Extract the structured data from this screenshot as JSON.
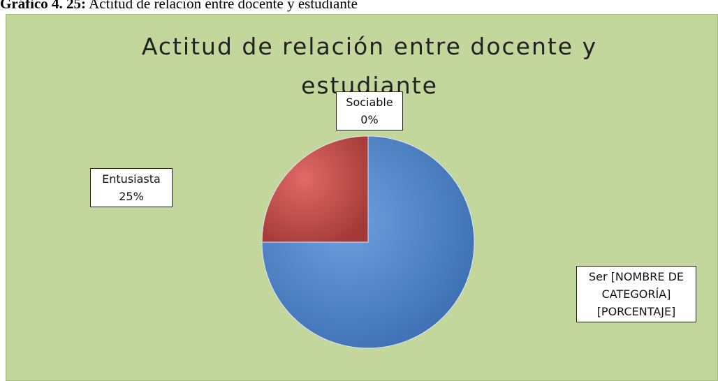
{
  "caption": {
    "label": "Gráfico 4. 25:",
    "text": "Actitud de relación entre docente y estudiante"
  },
  "chart_data": {
    "type": "pie",
    "title": "Actitud de relación entre docente y estudiante",
    "categories": [
      "Ser",
      "Entusiasta",
      "Sociable"
    ],
    "values": [
      75,
      25,
      0
    ],
    "value_labels": [
      "[NOMBRE DE CATEGORÍA] [PORCENTAJE]",
      "25%",
      "0%"
    ],
    "colors": [
      "#4f81bd",
      "#c0504d",
      "#9bbb59"
    ]
  }
}
